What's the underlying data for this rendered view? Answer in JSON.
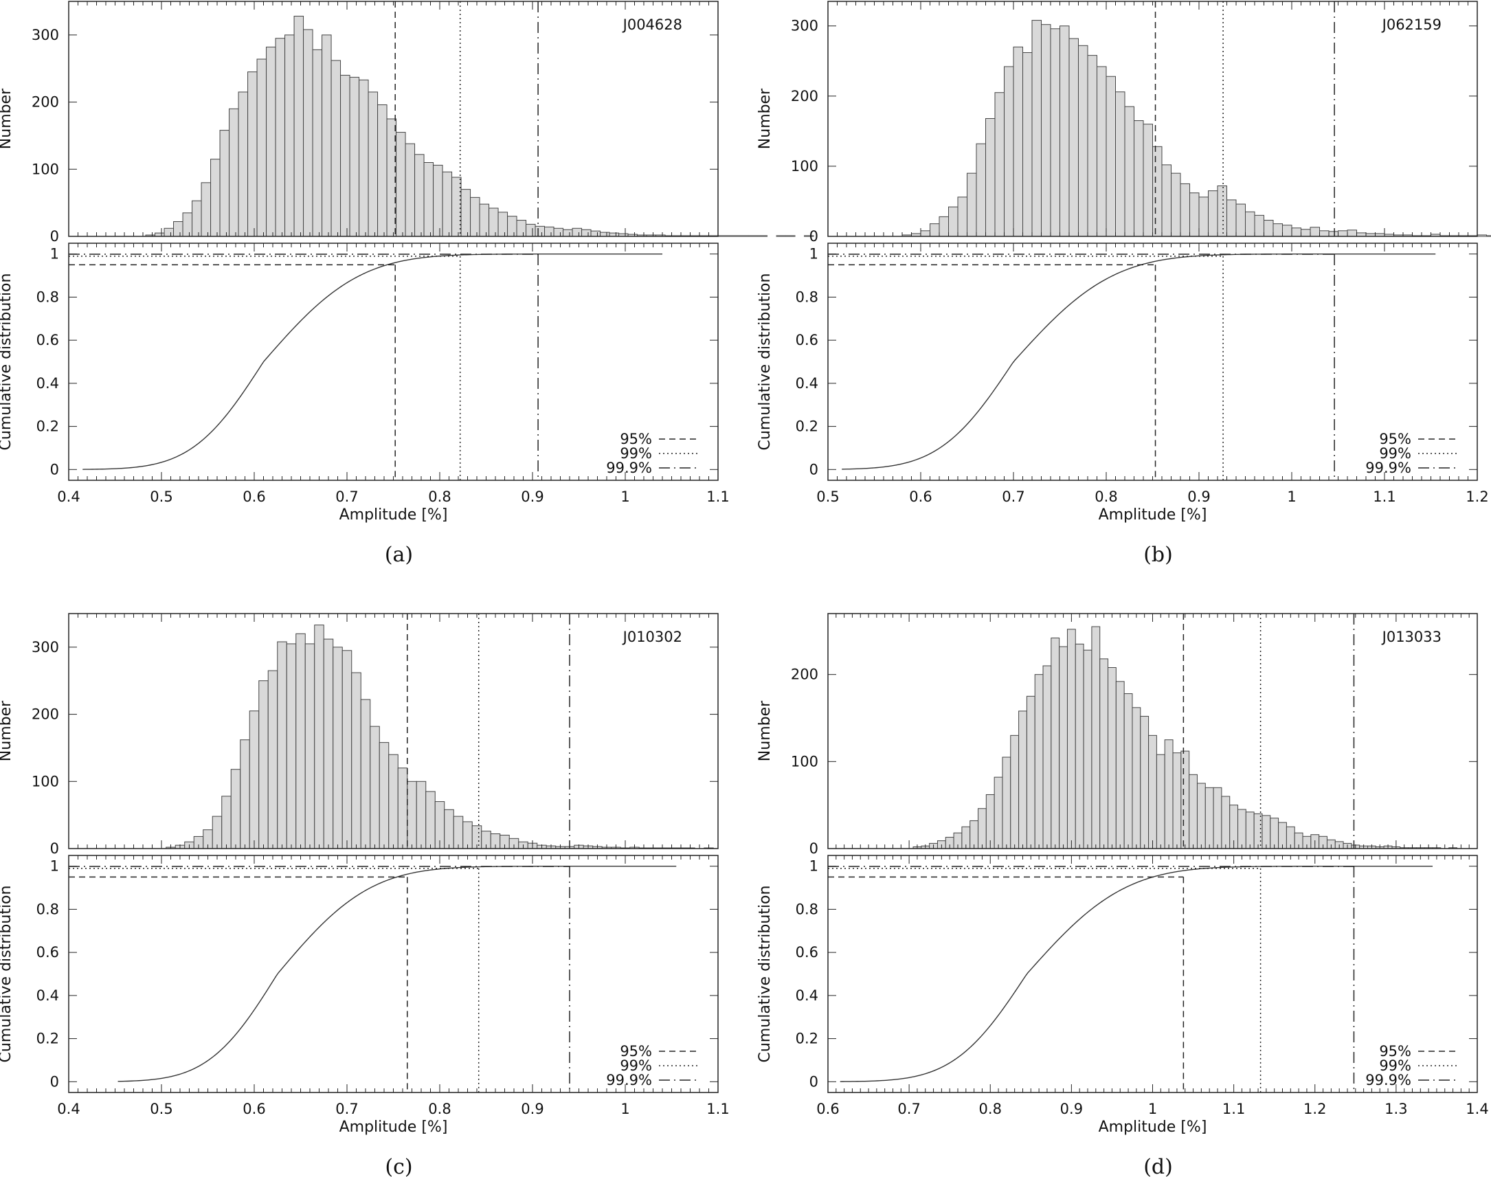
{
  "chart_data": [
    {
      "type": "histogram-with-cumulative-distribution",
      "subfigure_label": "(a)",
      "object_name": "J004628",
      "xlabel": "Amplitude [%]",
      "ylabel_top": "Number",
      "ylabel_bottom": "Cumulative distribution",
      "xlim": [
        0.4,
        1.1
      ],
      "x_ticks": [
        0.4,
        0.5,
        0.6,
        0.7,
        0.8,
        0.9,
        1,
        1.1
      ],
      "x_tick_labels": [
        "0.4",
        "0.5",
        "0.6",
        "0.7",
        "0.8",
        "0.9",
        "1",
        "1.1"
      ],
      "ylim_top": [
        0,
        350
      ],
      "y_ticks_top": [
        0,
        100,
        200,
        300
      ],
      "y_tick_labels_top": [
        "0",
        "100",
        "200",
        "300"
      ],
      "ylim_bottom": [
        -0.05,
        1.05
      ],
      "y_ticks_bottom": [
        0,
        0.2,
        0.4,
        0.6,
        0.8,
        1
      ],
      "y_tick_labels_bottom": [
        "0",
        "0.2",
        "0.4",
        "0.6",
        "0.8",
        "1"
      ],
      "bin_start": 0.483,
      "bin_width": 0.01,
      "counts": [
        2,
        5,
        12,
        22,
        35,
        53,
        80,
        115,
        158,
        190,
        215,
        245,
        264,
        282,
        295,
        300,
        328,
        308,
        278,
        300,
        262,
        240,
        237,
        233,
        215,
        196,
        175,
        155,
        138,
        122,
        110,
        106,
        96,
        88,
        70,
        58,
        48,
        42,
        36,
        30,
        24,
        18,
        15,
        14,
        12,
        10,
        12,
        10,
        8,
        6,
        5,
        4,
        3,
        2,
        2,
        2,
        1,
        1,
        1,
        1,
        1,
        1,
        1,
        1,
        1,
        1,
        1,
        0,
        1,
        1,
        0,
        1,
        0
      ],
      "cdf_range": [
        0.415,
        1.04
      ],
      "cdf_mu": 0.61,
      "cdf_sigma": 0.06,
      "cdf_tail": 0.07,
      "thresholds": [
        {
          "label": "95%",
          "x": 0.752,
          "level": 0.95,
          "style": "dashed"
        },
        {
          "label": "99%",
          "x": 0.822,
          "level": 0.99,
          "style": "dotted"
        },
        {
          "label": "99.9%",
          "x": 0.906,
          "level": 0.999,
          "style": "dashdot"
        }
      ]
    },
    {
      "type": "histogram-with-cumulative-distribution",
      "subfigure_label": "(b)",
      "object_name": "J062159",
      "xlabel": "Amplitude [%]",
      "ylabel_top": "Number",
      "ylabel_bottom": "Cumulative distribution",
      "xlim": [
        0.5,
        1.2
      ],
      "x_ticks": [
        0.5,
        0.6,
        0.7,
        0.8,
        0.9,
        1,
        1.1,
        1.2
      ],
      "x_tick_labels": [
        "0.5",
        "0.6",
        "0.7",
        "0.8",
        "0.9",
        "1",
        "1.1",
        "1.2"
      ],
      "ylim_top": [
        0,
        335
      ],
      "y_ticks_top": [
        0,
        100,
        200,
        300
      ],
      "y_tick_labels_top": [
        "0",
        "100",
        "200",
        "300"
      ],
      "ylim_bottom": [
        -0.05,
        1.05
      ],
      "y_ticks_bottom": [
        0,
        0.2,
        0.4,
        0.6,
        0.8,
        1
      ],
      "y_tick_labels_bottom": [
        "0",
        "0.2",
        "0.4",
        "0.6",
        "0.8",
        "1"
      ],
      "bin_start": 0.58,
      "bin_width": 0.01,
      "counts": [
        2,
        4,
        8,
        18,
        28,
        42,
        56,
        90,
        132,
        168,
        205,
        242,
        270,
        262,
        308,
        302,
        296,
        300,
        282,
        272,
        258,
        242,
        228,
        206,
        185,
        165,
        160,
        128,
        102,
        90,
        75,
        62,
        56,
        65,
        72,
        52,
        46,
        35,
        30,
        23,
        18,
        16,
        12,
        10,
        13,
        8,
        7,
        8,
        9,
        5,
        4,
        4,
        3,
        2,
        2,
        1,
        1,
        3,
        1,
        1,
        1,
        1,
        2,
        1,
        0,
        1,
        1,
        1,
        0,
        0,
        1,
        0,
        1,
        0,
        0,
        1,
        0
      ],
      "cdf_range": [
        0.515,
        1.155
      ],
      "cdf_mu": 0.7,
      "cdf_sigma": 0.062,
      "cdf_tail": 0.07,
      "thresholds": [
        {
          "label": "95%",
          "x": 0.853,
          "level": 0.95,
          "style": "dashed"
        },
        {
          "label": "99%",
          "x": 0.926,
          "level": 0.99,
          "style": "dotted"
        },
        {
          "label": "99.9%",
          "x": 1.046,
          "level": 0.999,
          "style": "dashdot"
        }
      ]
    },
    {
      "type": "histogram-with-cumulative-distribution",
      "subfigure_label": "(c)",
      "object_name": "J010302",
      "xlabel": "Amplitude [%]",
      "ylabel_top": "Number",
      "ylabel_bottom": "Cumulative distribution",
      "xlim": [
        0.4,
        1.1
      ],
      "x_ticks": [
        0.4,
        0.5,
        0.6,
        0.7,
        0.8,
        0.9,
        1,
        1.1
      ],
      "x_tick_labels": [
        "0.4",
        "0.5",
        "0.6",
        "0.7",
        "0.8",
        "0.9",
        "1",
        "1.1"
      ],
      "ylim_top": [
        0,
        350
      ],
      "y_ticks_top": [
        0,
        100,
        200,
        300
      ],
      "y_tick_labels_top": [
        "0",
        "100",
        "200",
        "300"
      ],
      "ylim_bottom": [
        -0.05,
        1.05
      ],
      "y_ticks_bottom": [
        0,
        0.2,
        0.4,
        0.6,
        0.8,
        1
      ],
      "y_tick_labels_bottom": [
        "0",
        "0.2",
        "0.4",
        "0.6",
        "0.8",
        "1"
      ],
      "bin_start": 0.505,
      "bin_width": 0.01,
      "counts": [
        2,
        5,
        10,
        18,
        28,
        48,
        78,
        118,
        162,
        205,
        250,
        265,
        308,
        305,
        320,
        305,
        333,
        312,
        300,
        295,
        262,
        222,
        182,
        158,
        140,
        120,
        100,
        100,
        85,
        70,
        58,
        48,
        40,
        34,
        26,
        22,
        20,
        15,
        10,
        8,
        5,
        4,
        3,
        3,
        5,
        4,
        3,
        2,
        2,
        1,
        2,
        1,
        1,
        1,
        1,
        1,
        1,
        0,
        1
      ],
      "cdf_range": [
        0.453,
        1.055
      ],
      "cdf_mu": 0.625,
      "cdf_sigma": 0.058,
      "cdf_tail": 0.06,
      "thresholds": [
        {
          "label": "95%",
          "x": 0.765,
          "level": 0.95,
          "style": "dashed"
        },
        {
          "label": "99%",
          "x": 0.842,
          "level": 0.99,
          "style": "dotted"
        },
        {
          "label": "99.9%",
          "x": 0.94,
          "level": 0.999,
          "style": "dashdot"
        }
      ]
    },
    {
      "type": "histogram-with-cumulative-distribution",
      "subfigure_label": "(d)",
      "object_name": "J013033",
      "xlabel": "Amplitude [%]",
      "ylabel_top": "Number",
      "ylabel_bottom": "Cumulative distribution",
      "xlim": [
        0.6,
        1.4
      ],
      "x_ticks": [
        0.6,
        0.7,
        0.8,
        0.9,
        1,
        1.1,
        1.2,
        1.3,
        1.4
      ],
      "x_tick_labels": [
        "0.6",
        "0.7",
        "0.8",
        "0.9",
        "1",
        "1.1",
        "1.2",
        "1.3",
        "1.4"
      ],
      "ylim_top": [
        0,
        270
      ],
      "y_ticks_top": [
        0,
        100,
        200
      ],
      "y_tick_labels_top": [
        "0",
        "100",
        "200"
      ],
      "ylim_bottom": [
        -0.05,
        1.05
      ],
      "y_ticks_bottom": [
        0,
        0.2,
        0.4,
        0.6,
        0.8,
        1
      ],
      "y_tick_labels_bottom": [
        "0",
        "0.2",
        "0.4",
        "0.6",
        "0.8",
        "1"
      ],
      "bin_start": 0.705,
      "bin_width": 0.01,
      "counts": [
        2,
        3,
        6,
        9,
        13,
        18,
        25,
        32,
        46,
        62,
        82,
        105,
        130,
        158,
        175,
        200,
        210,
        242,
        232,
        252,
        235,
        228,
        255,
        218,
        208,
        192,
        178,
        162,
        152,
        130,
        108,
        125,
        110,
        112,
        85,
        75,
        70,
        70,
        60,
        50,
        45,
        42,
        40,
        38,
        35,
        30,
        25,
        18,
        14,
        16,
        14,
        10,
        8,
        6,
        4,
        3,
        3,
        2,
        3,
        2,
        1,
        1,
        1,
        1,
        1,
        0,
        1
      ],
      "cdf_range": [
        0.615,
        1.345
      ],
      "cdf_mu": 0.845,
      "cdf_sigma": 0.07,
      "cdf_tail": 0.08,
      "thresholds": [
        {
          "label": "95%",
          "x": 1.038,
          "level": 0.95,
          "style": "dashed"
        },
        {
          "label": "99%",
          "x": 1.133,
          "level": 0.99,
          "style": "dotted"
        },
        {
          "label": "99.9%",
          "x": 1.248,
          "level": 0.999,
          "style": "dashdot"
        }
      ]
    }
  ]
}
